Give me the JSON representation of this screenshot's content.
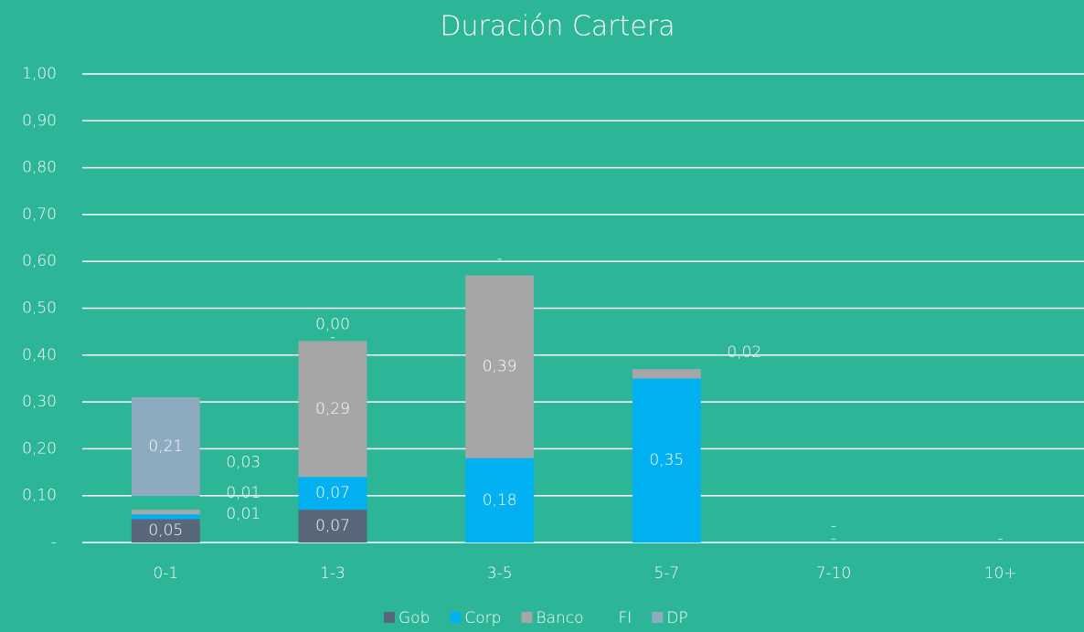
{
  "chart_data": {
    "type": "bar",
    "stacked": true,
    "title": "Duración Cartera",
    "categories": [
      "0-1",
      "1-3",
      "3-5",
      "5-7",
      "7-10",
      "10+"
    ],
    "series": [
      {
        "name": "Gob",
        "color": "#59677a",
        "values": [
          0.05,
          0.07,
          0,
          0,
          0,
          0
        ],
        "value_labels": [
          "0,05",
          "0,07",
          "-",
          "-",
          "-",
          "-"
        ]
      },
      {
        "name": "Corp",
        "color": "#00b0f0",
        "values": [
          0.01,
          0.07,
          0.18,
          0.35,
          null,
          null
        ],
        "value_labels": [
          "0,01",
          "0,07",
          "0,18",
          "0,35",
          null,
          null
        ]
      },
      {
        "name": "Banco",
        "color": "#a6a6a6",
        "values": [
          0.01,
          0.29,
          0.39,
          0.02,
          0,
          null
        ],
        "value_labels": [
          "0,01",
          "0,29",
          "0,39",
          "0,02",
          "-",
          null
        ]
      },
      {
        "name": "FI",
        "color": "#2db598",
        "values": [
          0.03,
          0,
          0,
          null,
          null,
          null
        ],
        "value_labels": [
          "0,03",
          "-",
          "-",
          null,
          null,
          null
        ]
      },
      {
        "name": "DP",
        "color": "#8eaabf",
        "values": [
          0.21,
          0,
          null,
          null,
          null,
          null
        ],
        "value_labels": [
          "0,21",
          "0,00",
          null,
          null,
          null,
          null
        ]
      }
    ],
    "ylim": [
      0,
      1
    ],
    "yticks": [
      {
        "value": 0,
        "label": "-"
      },
      {
        "value": 0.1,
        "label": "0,10"
      },
      {
        "value": 0.2,
        "label": "0,20"
      },
      {
        "value": 0.3,
        "label": "0,30"
      },
      {
        "value": 0.4,
        "label": "0,40"
      },
      {
        "value": 0.5,
        "label": "0,50"
      },
      {
        "value": 0.6,
        "label": "0,60"
      },
      {
        "value": 0.7,
        "label": "0,70"
      },
      {
        "value": 0.8,
        "label": "0,80"
      },
      {
        "value": 0.9,
        "label": "0,90"
      },
      {
        "value": 1,
        "label": "1,00"
      }
    ],
    "grid": true,
    "legend": "bottom"
  }
}
